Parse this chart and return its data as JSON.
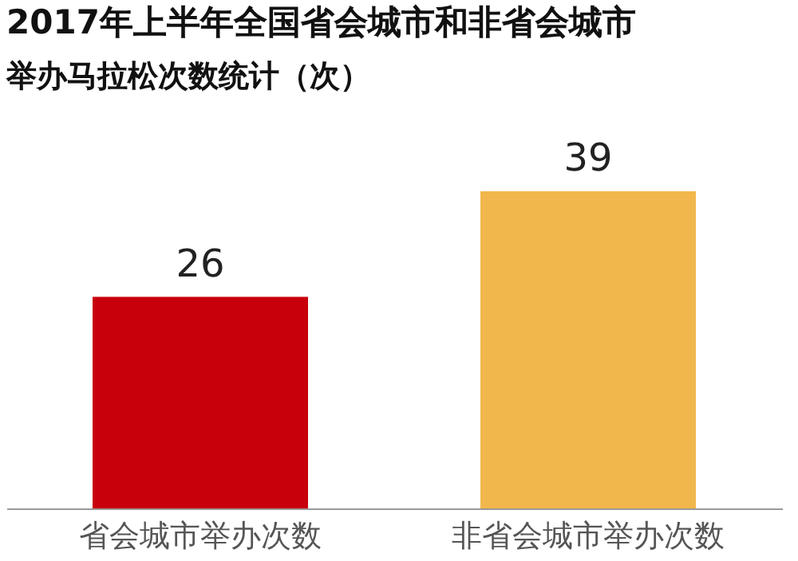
{
  "chart_data": {
    "type": "bar",
    "title": "2017年上半年全国省会城市和非省会城市",
    "subtitle": "举办马拉松次数统计（次）",
    "categories": [
      "省会城市举办次数",
      "非省会城市举办次数"
    ],
    "values": [
      26,
      39
    ],
    "colors": [
      "#c8000b",
      "#f2b74c"
    ],
    "data_labels": true
  }
}
